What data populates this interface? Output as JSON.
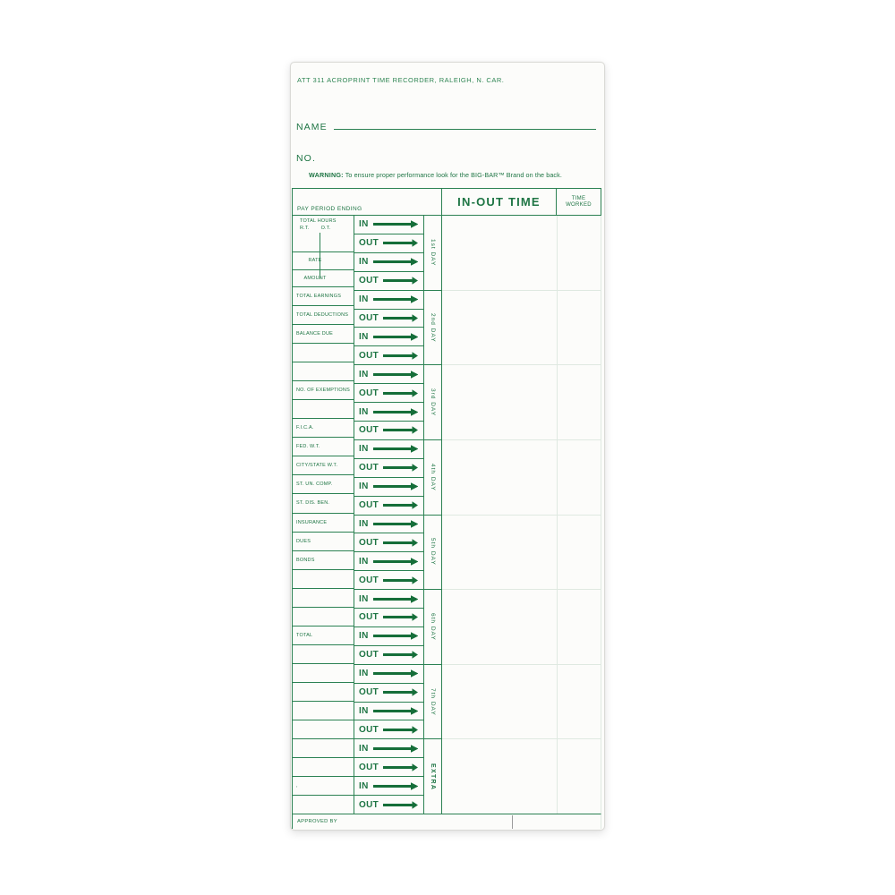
{
  "card": {
    "brand_line": "ATT 311 ACROPRINT TIME RECORDER, RALEIGH, N. CAR.",
    "name_label": "NAME",
    "no_label": "NO.",
    "warning_label": "WARNING:",
    "warning_text": "To ensure proper performance look for the BIG-BAR™ Brand on the back.",
    "colors": {
      "print_green": "#2b8152",
      "arrow_green": "#156e39",
      "faint_rule": "#dfe9e1",
      "card_background": "#fcfcfa"
    }
  },
  "table": {
    "pay_period_heading": "PAY PERIOD ENDING",
    "in_out_heading": "IN-OUT TIME",
    "time_worked_line1": "TIME",
    "time_worked_line2": "WORKED",
    "approved_by": "APPROVED BY",
    "total_hours_label": "TOTAL HOURS",
    "rt_label": "R.T.",
    "ot_label": "O.T.",
    "groups": [
      {
        "day": "1st DAY",
        "rows": [
          {
            "io": "IN",
            "label": ""
          },
          {
            "io": "OUT",
            "label": ""
          },
          {
            "io": "IN",
            "label": "RATE"
          },
          {
            "io": "OUT",
            "label": "AMOUNT"
          }
        ]
      },
      {
        "day": "2nd DAY",
        "rows": [
          {
            "io": "IN",
            "label": "TOTAL EARNINGS"
          },
          {
            "io": "OUT",
            "label": "TOTAL DEDUCTIONS"
          },
          {
            "io": "IN",
            "label": "BALANCE DUE"
          },
          {
            "io": "OUT",
            "label": ""
          }
        ]
      },
      {
        "day": "3rd DAY",
        "rows": [
          {
            "io": "IN",
            "label": ""
          },
          {
            "io": "OUT",
            "label": "NO. OF EXEMPTIONS"
          },
          {
            "io": "IN",
            "label": ""
          },
          {
            "io": "OUT",
            "label": "F.I.C.A."
          }
        ]
      },
      {
        "day": "4th DAY",
        "rows": [
          {
            "io": "IN",
            "label": "FED. W.T."
          },
          {
            "io": "OUT",
            "label": "CITY/STATE W.T."
          },
          {
            "io": "IN",
            "label": "ST. UN. COMP."
          },
          {
            "io": "OUT",
            "label": "ST. DIS. BEN."
          }
        ]
      },
      {
        "day": "5th DAY",
        "rows": [
          {
            "io": "IN",
            "label": "INSURANCE"
          },
          {
            "io": "OUT",
            "label": "DUES"
          },
          {
            "io": "IN",
            "label": "BONDS"
          },
          {
            "io": "OUT",
            "label": ""
          }
        ]
      },
      {
        "day": "6th DAY",
        "rows": [
          {
            "io": "IN",
            "label": ""
          },
          {
            "io": "OUT",
            "label": ""
          },
          {
            "io": "IN",
            "label": "TOTAL"
          },
          {
            "io": "OUT",
            "label": ""
          }
        ]
      },
      {
        "day": "7th DAY",
        "rows": [
          {
            "io": "IN",
            "label": ""
          },
          {
            "io": "OUT",
            "label": ""
          },
          {
            "io": "IN",
            "label": ""
          },
          {
            "io": "OUT",
            "label": ""
          }
        ]
      },
      {
        "day": "EXTRA",
        "rows": [
          {
            "io": "IN",
            "label": ""
          },
          {
            "io": "OUT",
            "label": ""
          },
          {
            "io": "IN",
            "label": ","
          },
          {
            "io": "OUT",
            "label": ""
          }
        ]
      }
    ]
  }
}
